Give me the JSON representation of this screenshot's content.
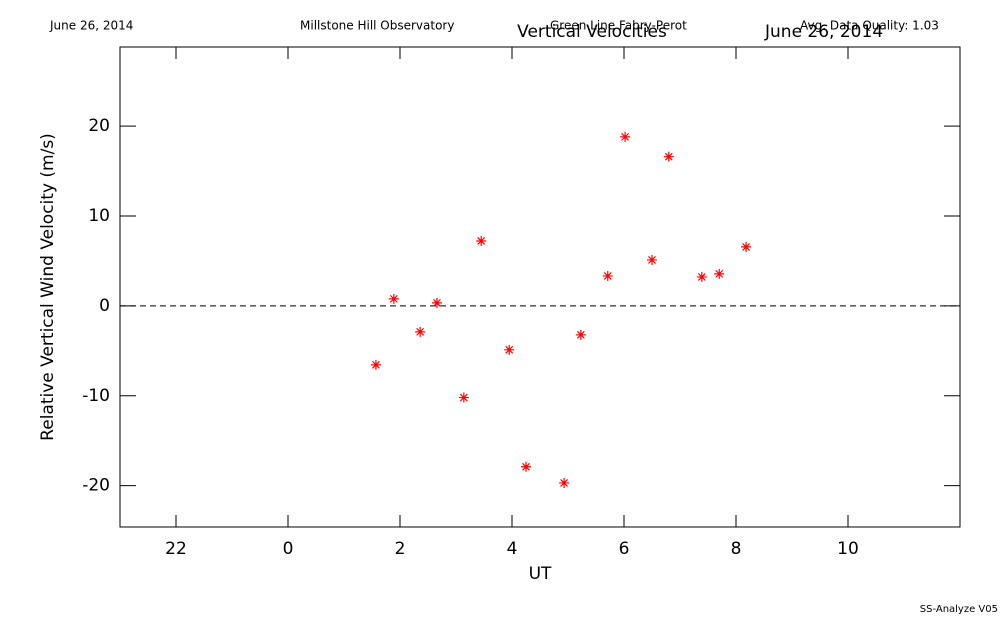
{
  "chart_data": {
    "type": "scatter",
    "header": {
      "date": "June 26, 2014",
      "observatory": "Millstone Hill Observatory",
      "instrument": "Green Line Fabry-Perot",
      "quality": "Avg. Data Quality: 1.03"
    },
    "title": "Vertical Velocities",
    "subtitle": "June 26, 2014",
    "xlabel": "UT",
    "ylabel": "Relative Vertical Wind Velocity (m/s)",
    "footer": "SS-Analyze V05",
    "xlim": [
      -3,
      12
    ],
    "ylim": [
      -24.6,
      28.8
    ],
    "xticks": [
      {
        "value": -2,
        "label": "22"
      },
      0,
      2,
      4,
      6,
      8,
      10
    ],
    "yticks": [
      -20,
      -10,
      0,
      10,
      20
    ],
    "reference_line": 0,
    "series": [
      {
        "color": "#ff0000",
        "x": [
          1.57,
          1.89,
          2.36,
          2.66,
          3.14,
          3.45,
          3.95,
          4.25,
          4.93,
          5.23,
          5.71,
          6.02,
          6.5,
          6.8,
          7.39,
          7.7,
          8.18
        ],
        "values": [
          -6.56,
          0.78,
          -2.89,
          0.33,
          -10.2,
          7.22,
          -4.89,
          -17.9,
          -19.7,
          -3.22,
          3.33,
          18.8,
          5.11,
          16.6,
          3.22,
          3.56,
          6.56
        ]
      }
    ]
  }
}
